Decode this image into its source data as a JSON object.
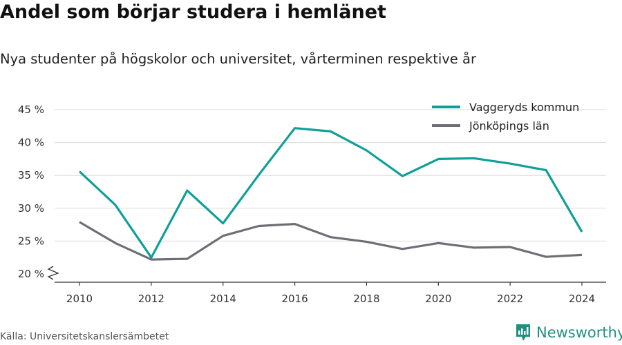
{
  "title": "Andel som börjar studera i hemlänet",
  "subtitle": "Nya studenter på högskolor och universitet, vårterminen respektive år",
  "source": "Källa: Universitetskanslersämbetet",
  "brand": {
    "name": "Newsworthy",
    "color": "#1f8f80"
  },
  "chart_data": {
    "type": "line",
    "x": [
      2010,
      2011,
      2012,
      2013,
      2014,
      2015,
      2016,
      2017,
      2018,
      2019,
      2020,
      2021,
      2022,
      2023,
      2024
    ],
    "x_ticks": [
      2010,
      2012,
      2014,
      2016,
      2018,
      2020,
      2022,
      2024
    ],
    "y_ticks": [
      20,
      25,
      30,
      35,
      40,
      45
    ],
    "y_tick_suffix": " %",
    "ylim": [
      20,
      45
    ],
    "y_axis_break": true,
    "grid": true,
    "legend_position": "top-right",
    "series": [
      {
        "name": "Vaggeryds kommun",
        "color": "#0e9f99",
        "values": [
          35.6,
          30.5,
          22.5,
          32.7,
          27.7,
          35.1,
          42.2,
          41.7,
          38.8,
          34.9,
          37.5,
          37.6,
          36.8,
          35.8,
          26.4
        ]
      },
      {
        "name": "Jönköpings län",
        "color": "#6e6e76",
        "values": [
          27.9,
          24.7,
          22.2,
          22.3,
          25.8,
          27.3,
          27.6,
          25.6,
          24.9,
          23.8,
          24.7,
          24.0,
          24.1,
          22.6,
          22.9
        ]
      }
    ]
  }
}
